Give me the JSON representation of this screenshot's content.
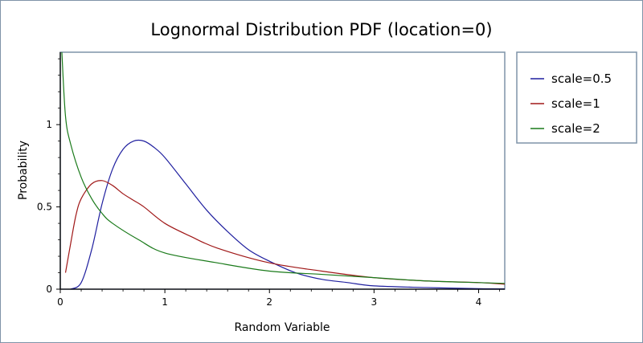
{
  "chart_data": {
    "type": "line",
    "title": "Lognormal Distribution PDF (location=0)",
    "xlabel": "Random Variable",
    "ylabel": "Probability",
    "xlim": [
      0,
      4.25
    ],
    "ylim": [
      0,
      1.44
    ],
    "x_ticks": [
      "0",
      "1",
      "2",
      "3",
      "4"
    ],
    "y_ticks": [
      "0",
      "0.5",
      "1"
    ],
    "grid": false,
    "legend_position": "right",
    "series": [
      {
        "name": "scale=0.5",
        "color": "#1f1f9f",
        "x": [
          0.1,
          0.2,
          0.3,
          0.4,
          0.5,
          0.6,
          0.7,
          0.8,
          0.9,
          1.0,
          1.2,
          1.4,
          1.6,
          1.8,
          2.0,
          2.25,
          2.5,
          2.75,
          3.0,
          3.5,
          4.0,
          4.25
        ],
        "y": [
          0.0,
          0.04,
          0.24,
          0.52,
          0.73,
          0.85,
          0.9,
          0.9,
          0.86,
          0.8,
          0.64,
          0.48,
          0.35,
          0.24,
          0.17,
          0.1,
          0.06,
          0.04,
          0.02,
          0.01,
          0.003,
          0.002
        ]
      },
      {
        "name": "scale=1",
        "color": "#a01818",
        "x": [
          0.05,
          0.1,
          0.15,
          0.2,
          0.3,
          0.4,
          0.5,
          0.6,
          0.7,
          0.8,
          1.0,
          1.25,
          1.5,
          2.0,
          2.5,
          3.0,
          3.5,
          4.0,
          4.25
        ],
        "y": [
          0.1,
          0.28,
          0.45,
          0.55,
          0.64,
          0.66,
          0.63,
          0.58,
          0.54,
          0.5,
          0.4,
          0.32,
          0.25,
          0.16,
          0.11,
          0.07,
          0.05,
          0.04,
          0.03
        ]
      },
      {
        "name": "scale=2",
        "color": "#1a7a1a",
        "x": [
          0.015,
          0.05,
          0.1,
          0.2,
          0.3,
          0.4,
          0.5,
          0.75,
          1.0,
          1.5,
          2.0,
          2.5,
          3.0,
          3.5,
          4.0,
          4.25
        ],
        "y": [
          1.44,
          1.05,
          0.88,
          0.68,
          0.55,
          0.46,
          0.4,
          0.3,
          0.22,
          0.16,
          0.11,
          0.09,
          0.07,
          0.05,
          0.04,
          0.035
        ]
      }
    ]
  }
}
